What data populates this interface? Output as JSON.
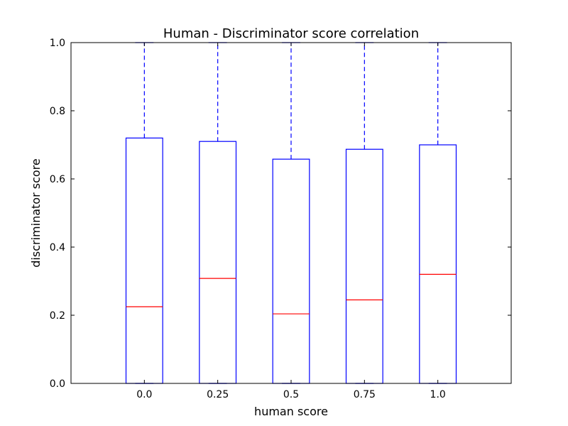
{
  "chart_data": {
    "type": "box",
    "title": "Human - Discriminator score correlation",
    "xlabel": "human score",
    "ylabel": "discriminator score",
    "categories": [
      "0.0",
      "0.25",
      "0.5",
      "0.75",
      "1.0"
    ],
    "ylim": [
      0.0,
      1.0
    ],
    "yticks": [
      "0.0",
      "0.2",
      "0.4",
      "0.6",
      "0.8",
      "1.0"
    ],
    "grid": false,
    "boxes": [
      {
        "category": "0.0",
        "whisker_low": 0.0,
        "q1": 0.0,
        "median": 0.225,
        "q3": 0.72,
        "whisker_high": 1.0
      },
      {
        "category": "0.25",
        "whisker_low": 0.0,
        "q1": 0.0,
        "median": 0.308,
        "q3": 0.71,
        "whisker_high": 1.0
      },
      {
        "category": "0.5",
        "whisker_low": 0.0,
        "q1": 0.0,
        "median": 0.204,
        "q3": 0.658,
        "whisker_high": 1.0
      },
      {
        "category": "0.75",
        "whisker_low": 0.0,
        "q1": 0.0,
        "median": 0.245,
        "q3": 0.687,
        "whisker_high": 1.0
      },
      {
        "category": "1.0",
        "whisker_low": 0.0,
        "q1": 0.0,
        "median": 0.32,
        "q3": 0.7,
        "whisker_high": 1.0
      }
    ],
    "colors": {
      "box": "#0000ff",
      "median": "#ff0000",
      "axes": "#000000"
    }
  }
}
